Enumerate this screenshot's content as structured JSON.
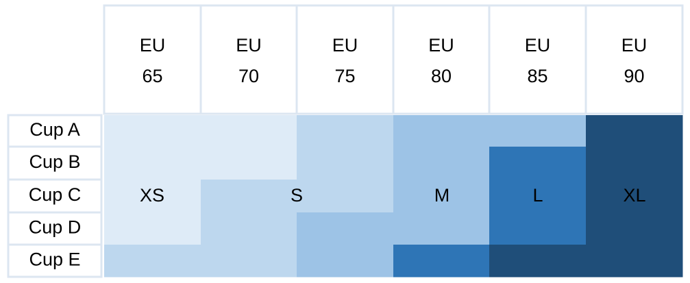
{
  "header": {
    "columns": [
      [
        "EU",
        "65"
      ],
      [
        "EU",
        "70"
      ],
      [
        "EU",
        "75"
      ],
      [
        "EU",
        "80"
      ],
      [
        "EU",
        "85"
      ],
      [
        "EU",
        "90"
      ]
    ]
  },
  "rows": [
    "Cup A",
    "Cup B",
    "Cup C",
    "Cup D",
    "Cup E"
  ],
  "sizes": [
    {
      "label": "XS",
      "color": "#deebf7"
    },
    {
      "label": "S",
      "color": "#bdd7ee"
    },
    {
      "label": "M",
      "color": "#9dc3e6"
    },
    {
      "label": "L",
      "color": "#2e75b6"
    },
    {
      "label": "XL",
      "color": "#1f4e79"
    }
  ],
  "cells": [
    [
      "XS",
      "XS",
      "S",
      "M",
      "M",
      "XL"
    ],
    [
      "XS",
      "XS",
      "S",
      "M",
      "L",
      "XL"
    ],
    [
      "XS",
      "S",
      "S",
      "M",
      "L",
      "XL"
    ],
    [
      "XS",
      "S",
      "M",
      "M",
      "L",
      "XL"
    ],
    [
      "S",
      "S",
      "M",
      "L",
      "XL",
      "XL"
    ]
  ]
}
